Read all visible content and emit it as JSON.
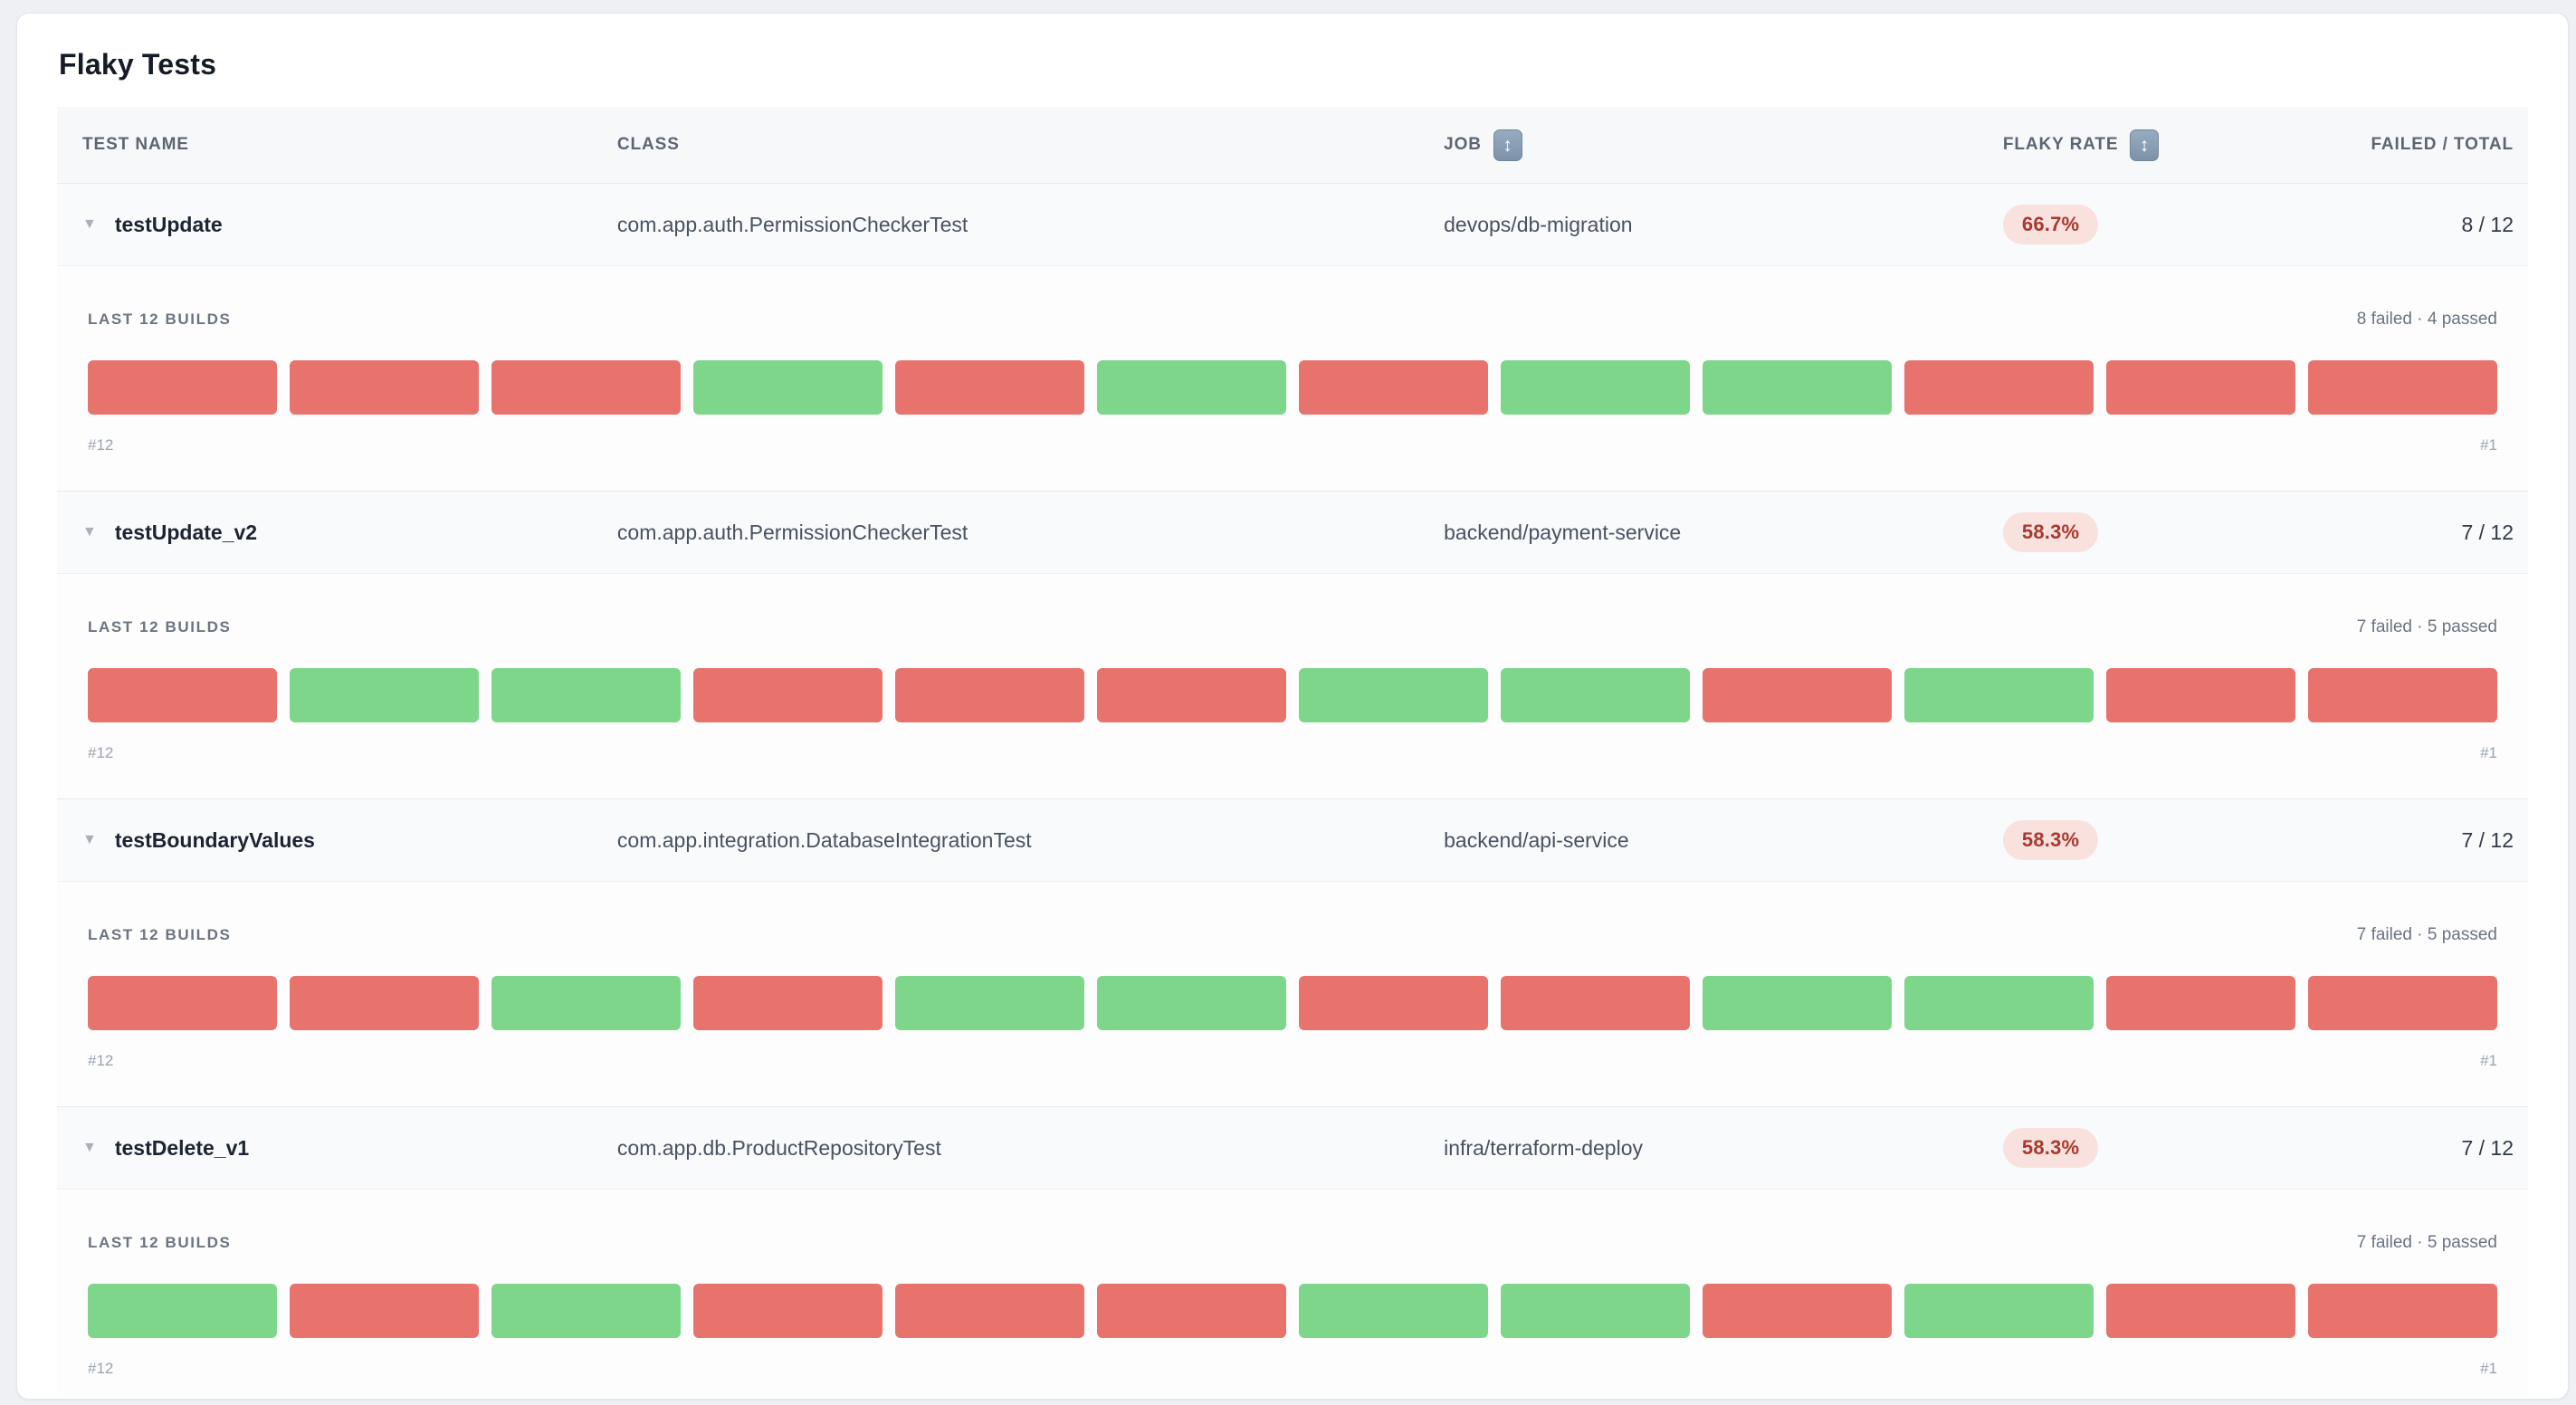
{
  "page": {
    "title": "Flaky Tests"
  },
  "icons": {
    "sort": "↕",
    "caret": "▼"
  },
  "colors": {
    "failed": "#e8736d",
    "passed": "#7ed68a",
    "badge_bg": "#f9e1de",
    "badge_text": "#a8392f"
  },
  "table": {
    "columns": [
      {
        "label": "TEST NAME",
        "sortable": false
      },
      {
        "label": "CLASS",
        "sortable": false
      },
      {
        "label": "JOB",
        "sortable": true
      },
      {
        "label": "FLAKY RATE",
        "sortable": true
      },
      {
        "label": "FAILED / TOTAL",
        "sortable": false
      }
    ],
    "rows": [
      {
        "test_name": "testUpdate",
        "class": "com.app.auth.PermissionCheckerTest",
        "job": "devops/db-migration",
        "flaky_rate": "66.7%",
        "failed_total": "8 / 12",
        "builds_label": "LAST 12 BUILDS",
        "summary": "8 failed · 4 passed",
        "first_build_label": "#12",
        "last_build_label": "#1",
        "builds": [
          "failed",
          "failed",
          "failed",
          "passed",
          "failed",
          "passed",
          "failed",
          "passed",
          "passed",
          "failed",
          "failed",
          "failed"
        ]
      },
      {
        "test_name": "testUpdate_v2",
        "class": "com.app.auth.PermissionCheckerTest",
        "job": "backend/payment-service",
        "flaky_rate": "58.3%",
        "failed_total": "7 / 12",
        "builds_label": "LAST 12 BUILDS",
        "summary": "7 failed · 5 passed",
        "first_build_label": "#12",
        "last_build_label": "#1",
        "builds": [
          "failed",
          "passed",
          "passed",
          "failed",
          "failed",
          "failed",
          "passed",
          "passed",
          "failed",
          "passed",
          "failed",
          "failed"
        ]
      },
      {
        "test_name": "testBoundaryValues",
        "class": "com.app.integration.DatabaseIntegrationTest",
        "job": "backend/api-service",
        "flaky_rate": "58.3%",
        "failed_total": "7 / 12",
        "builds_label": "LAST 12 BUILDS",
        "summary": "7 failed · 5 passed",
        "first_build_label": "#12",
        "last_build_label": "#1",
        "builds": [
          "failed",
          "failed",
          "passed",
          "failed",
          "passed",
          "passed",
          "failed",
          "failed",
          "passed",
          "passed",
          "failed",
          "failed"
        ]
      },
      {
        "test_name": "testDelete_v1",
        "class": "com.app.db.ProductRepositoryTest",
        "job": "infra/terraform-deploy",
        "flaky_rate": "58.3%",
        "failed_total": "7 / 12",
        "builds_label": "LAST 12 BUILDS",
        "summary": "7 failed · 5 passed",
        "first_build_label": "#12",
        "last_build_label": "#1",
        "builds": [
          "passed",
          "failed",
          "passed",
          "failed",
          "failed",
          "failed",
          "passed",
          "passed",
          "failed",
          "passed",
          "failed",
          "failed"
        ]
      }
    ]
  }
}
